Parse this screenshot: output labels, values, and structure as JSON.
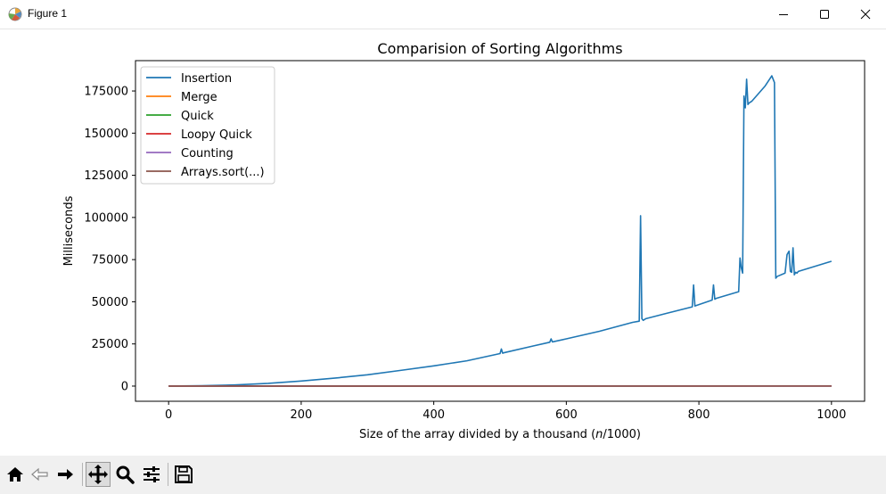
{
  "window": {
    "title": "Figure 1",
    "controls": [
      "minimize",
      "maximize",
      "close"
    ]
  },
  "toolbar": {
    "items": [
      {
        "name": "home-icon",
        "tooltip": "Home"
      },
      {
        "name": "back-icon",
        "tooltip": "Back"
      },
      {
        "name": "forward-icon",
        "tooltip": "Forward"
      },
      {
        "name": "pan-icon",
        "tooltip": "Pan",
        "active": true
      },
      {
        "name": "zoom-icon",
        "tooltip": "Zoom"
      },
      {
        "name": "configure-subplots-icon",
        "tooltip": "Subplots"
      },
      {
        "name": "save-icon",
        "tooltip": "Save"
      }
    ]
  },
  "chart_data": {
    "type": "line",
    "title": "Comparision of Sorting Algorithms",
    "xlabel_prefix": "Size of the array divided by a thousand (",
    "xlabel_var": "n",
    "xlabel_suffix": "/1000)",
    "ylabel": "Milliseconds",
    "xlim": [
      -50,
      1050
    ],
    "ylim": [
      -9000,
      193000
    ],
    "xticks": [
      0,
      200,
      400,
      600,
      800,
      1000
    ],
    "yticks": [
      0,
      25000,
      50000,
      75000,
      100000,
      125000,
      150000,
      175000
    ],
    "grid": false,
    "legend_position": "top-left",
    "colors": {
      "Insertion": "#1f77b4",
      "Merge": "#ff7f0e",
      "Quick": "#2ca02c",
      "Loopy Quick": "#d62728",
      "Counting": "#9467bd",
      "Arrays.sort(...)": "#8c564b"
    },
    "series": [
      {
        "name": "Insertion",
        "x": [
          0,
          50,
          100,
          150,
          200,
          250,
          300,
          350,
          400,
          450,
          500,
          502,
          504,
          506,
          550,
          575,
          577,
          579,
          600,
          650,
          700,
          710,
          712,
          714,
          716,
          718,
          720,
          750,
          790,
          792,
          794,
          796,
          820,
          822,
          824,
          826,
          860,
          862,
          864,
          866,
          868,
          870,
          872,
          874,
          876,
          880,
          900,
          910,
          912,
          914,
          916,
          918,
          930,
          933,
          936,
          938,
          940,
          942,
          944,
          946,
          948,
          950,
          1000
        ],
        "y": [
          0,
          200,
          700,
          1600,
          3000,
          4700,
          6700,
          9300,
          12000,
          15000,
          19300,
          22000,
          19500,
          19800,
          23800,
          26000,
          28000,
          26200,
          28000,
          32500,
          37800,
          38500,
          101000,
          40000,
          39000,
          39500,
          40000,
          43000,
          47000,
          60000,
          47500,
          47800,
          51000,
          60000,
          51500,
          52000,
          56000,
          76000,
          70000,
          67000,
          172000,
          165000,
          182000,
          167000,
          168000,
          169000,
          178000,
          184000,
          182000,
          180000,
          64000,
          65000,
          67000,
          78000,
          80000,
          68000,
          67500,
          82000,
          66000,
          67500,
          67000,
          68000,
          74000
        ]
      },
      {
        "name": "Merge",
        "x": [
          0,
          1000
        ],
        "y": [
          0,
          100
        ]
      },
      {
        "name": "Quick",
        "x": [
          0,
          1000
        ],
        "y": [
          0,
          80
        ]
      },
      {
        "name": "Loopy Quick",
        "x": [
          0,
          1000
        ],
        "y": [
          0,
          90
        ]
      },
      {
        "name": "Counting",
        "x": [
          0,
          1000
        ],
        "y": [
          0,
          20
        ]
      },
      {
        "name": "Arrays.sort(...)",
        "x": [
          0,
          1000
        ],
        "y": [
          0,
          60
        ]
      }
    ]
  }
}
